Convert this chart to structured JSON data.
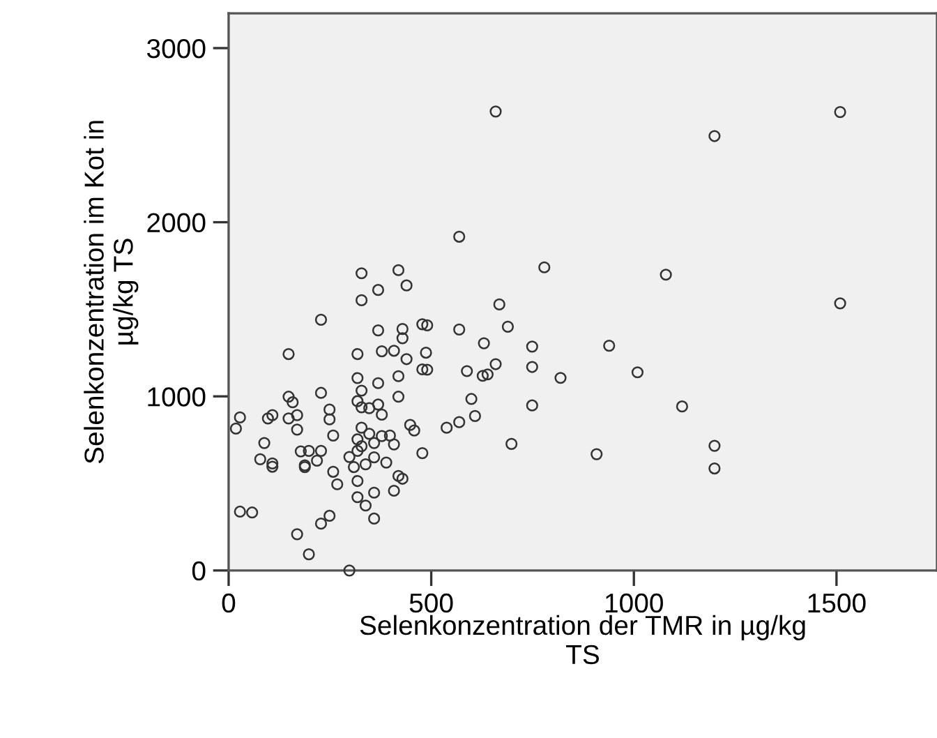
{
  "chart_data": {
    "type": "scatter",
    "xlabel": "Selenkonzentration der TMR in µg/kg\nTS",
    "ylabel": "Selenkonzentration im Kot in\nµg/kg TS",
    "x": [
      328,
      419,
      369,
      439,
      328,
      228,
      369,
      429,
      429,
      478,
      490,
      148,
      318,
      378,
      408,
      439,
      487,
      478,
      490,
      318,
      419,
      328,
      369,
      228,
      148,
      158,
      318,
      328,
      347,
      369,
      378,
      419,
      249,
      249,
      169,
      148,
      97,
      108,
      28,
      18,
      169,
      258,
      328,
      347,
      359,
      378,
      398,
      408,
      448,
      458,
      538,
      88,
      78,
      108,
      108,
      178,
      198,
      228,
      218,
      188,
      188,
      298,
      318,
      328,
      318,
      309,
      338,
      359,
      389,
      478,
      419,
      429,
      258,
      268,
      318,
      359,
      408,
      318,
      338,
      359,
      249,
      228,
      28,
      58,
      169,
      198,
      298,
      659,
      569,
      779,
      1079,
      668,
      689,
      569,
      630,
      749,
      939,
      749,
      588,
      659,
      627,
      639,
      819,
      1009,
      749,
      1119,
      599,
      608,
      569,
      698,
      908,
      1199,
      1509,
      1509,
      1199,
      1199
    ],
    "values": [
      1707,
      1725,
      1611,
      1637,
      1552,
      1440,
      1379,
      1387,
      1334,
      1414,
      1408,
      1243,
      1243,
      1259,
      1262,
      1214,
      1251,
      1155,
      1153,
      1105,
      1116,
      1033,
      1076,
      1020,
      998,
      966,
      972,
      937,
      932,
      953,
      895,
      998,
      924,
      868,
      892,
      873,
      873,
      892,
      879,
      815,
      809,
      775,
      820,
      785,
      732,
      772,
      775,
      724,
      836,
      804,
      820,
      732,
      639,
      615,
      596,
      684,
      687,
      687,
      631,
      604,
      594,
      652,
      687,
      714,
      753,
      594,
      610,
      650,
      620,
      674,
      543,
      527,
      567,
      495,
      514,
      447,
      458,
      421,
      373,
      298,
      314,
      269,
      338,
      333,
      208,
      93,
      0,
      2636,
      1917,
      1741,
      1699,
      1528,
      1400,
      1384,
      1305,
      1286,
      1291,
      1169,
      1145,
      1185,
      1118,
      1126,
      1106,
      1138,
      948,
      942,
      985,
      887,
      852,
      727,
      668,
      2495,
      2633,
      1534,
      716,
      586
    ],
    "color": "#333333",
    "marker": "circle",
    "xlim": [
      0,
      1748
    ],
    "ylim": [
      0,
      3200
    ],
    "xticks": [
      0,
      500,
      1000,
      1500
    ],
    "yticks": [
      0,
      1000,
      2000,
      3000
    ],
    "grid": false
  }
}
